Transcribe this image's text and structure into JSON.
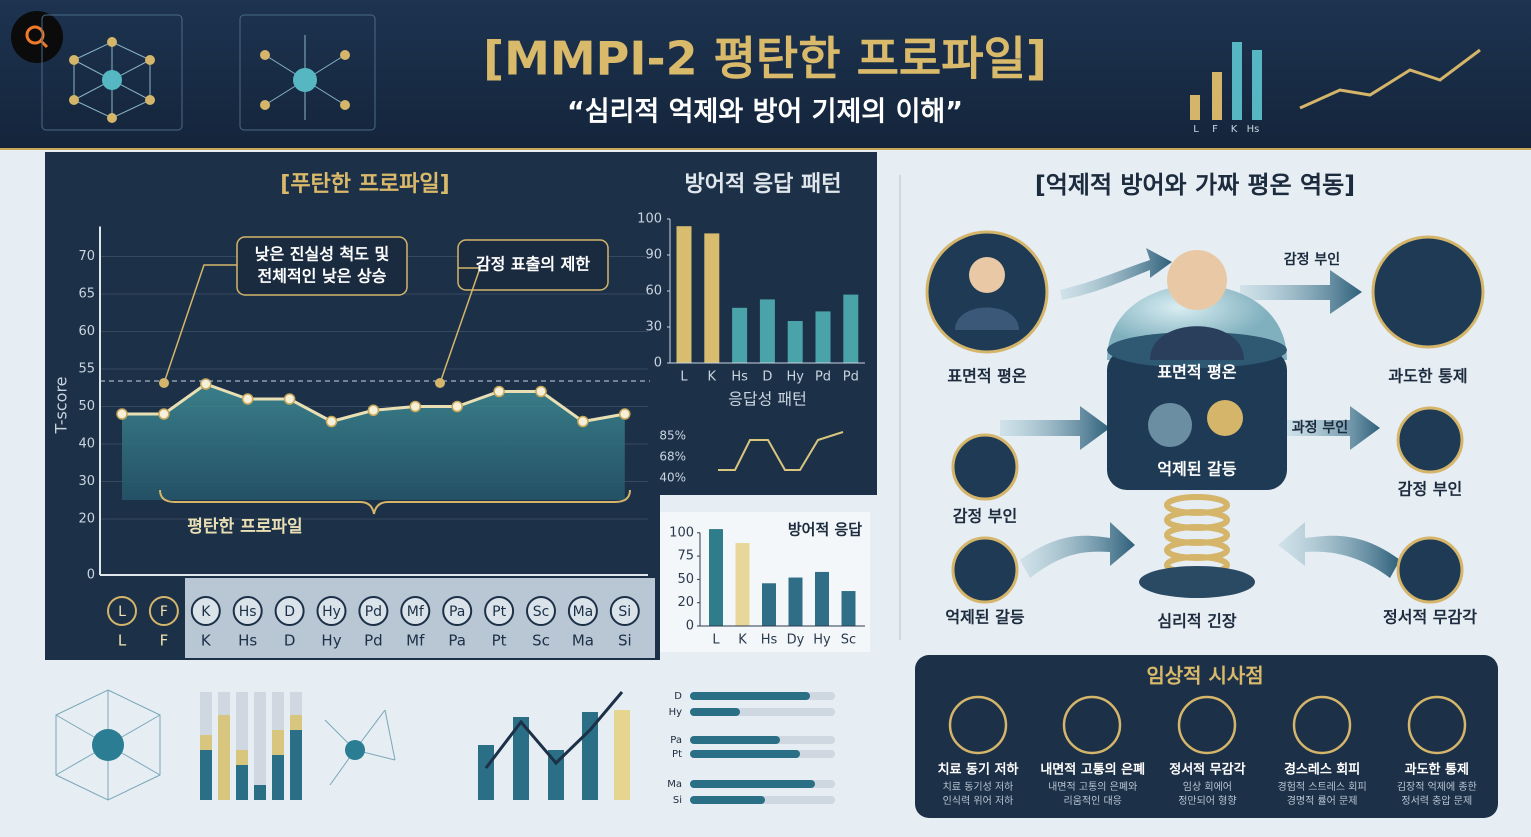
{
  "header": {
    "title": "[MMPI-2 평탄한 프로파일]",
    "subtitle": "“심리적 억제와 방어 기제의 이해”",
    "mini_labels": [
      "L",
      "F",
      "K",
      "Hs"
    ]
  },
  "chart_data": [
    {
      "type": "line",
      "title": "[푸탄한 프로파일]",
      "y_label": "T-score",
      "categories": [
        "L",
        "F",
        "K",
        "Hs",
        "D",
        "Hy",
        "Pd",
        "Mf",
        "Pa",
        "Pt",
        "Sc",
        "Ma",
        "Si"
      ],
      "values": [
        48,
        48,
        53,
        51,
        51,
        46,
        49,
        50,
        50,
        52,
        52,
        46,
        48
      ],
      "color": "#e9dfb4",
      "ylim": [
        0,
        70
      ],
      "yticks": [
        0,
        20,
        30,
        40,
        50,
        55,
        60,
        65,
        70
      ],
      "grid": true,
      "annotations": [
        [
          "낮은 진실성 척도 및",
          "전체적인 낮은 상승"
        ],
        [
          "감정 표출의 제한"
        ]
      ],
      "brace_label": "평탄한 프로파일"
    },
    {
      "type": "bar",
      "title": "방어적 응답 패턴",
      "x_label": "응답성 패턴",
      "categories": [
        "L",
        "K",
        "Hs",
        "D",
        "Hy",
        "Pd",
        "Pd"
      ],
      "values": [
        98,
        96,
        46,
        53,
        35,
        43,
        57
      ],
      "colors": [
        "#d8bd6e",
        "#d8bd6e",
        "#4aa3a8",
        "#4aa3a8",
        "#4aa3a8",
        "#4aa3a8",
        "#4aa3a8"
      ],
      "ylim": [
        0,
        100
      ],
      "yticks": [
        0,
        30,
        60,
        90,
        100
      ]
    },
    {
      "type": "bar",
      "title": "방어적 응답",
      "categories": [
        "L",
        "K",
        "Hs",
        "Dy",
        "Hy",
        "Sc"
      ],
      "values": [
        104,
        89,
        45,
        52,
        58,
        35
      ],
      "colors": [
        "#2f7d8a",
        "#e7d79a",
        "#2f6e86",
        "#2f6e86",
        "#2f6e86",
        "#2f6e86"
      ],
      "ylim": [
        0,
        100
      ],
      "yticks": [
        0,
        20,
        50,
        75,
        100
      ]
    }
  ],
  "mini_chart_labels": [
    "85%",
    "68%",
    "40%"
  ],
  "bar_list_labels": [
    "D",
    "Hy",
    "Pa",
    "Pt",
    "Ma",
    "Si"
  ],
  "diagram": {
    "title": "[억제적 방어와 가짜 평온 역동]",
    "nodes": [
      "표면적 평온",
      "감정 부인",
      "과도한 통제",
      "표면적 평온",
      "억제된 갈등",
      "과정 부인",
      "감정 부인",
      "감정 부인",
      "억제된 갈등",
      "심리적 긴장",
      "정서적 무감각"
    ]
  },
  "clinical": {
    "title": "임상적 시사점",
    "items": [
      {
        "title": "치료 동기 저하",
        "lines": [
          "치료 동기성 저하",
          "인식력 위어 저하"
        ]
      },
      {
        "title": "내면적 고통의 은폐",
        "lines": [
          "내면적 고통의 은폐와",
          "리움적인 대응"
        ]
      },
      {
        "title": "정서적 무감각",
        "lines": [
          "임상 회에어",
          "정만되어 형향"
        ]
      },
      {
        "title": "경스레스 회피",
        "lines": [
          "경험적 스트레스 회피",
          "경명적 률어 문제"
        ]
      },
      {
        "title": "과도한 통제",
        "lines": [
          "김장적 억제에 종한",
          "정서력 충압 문제"
        ]
      }
    ]
  }
}
